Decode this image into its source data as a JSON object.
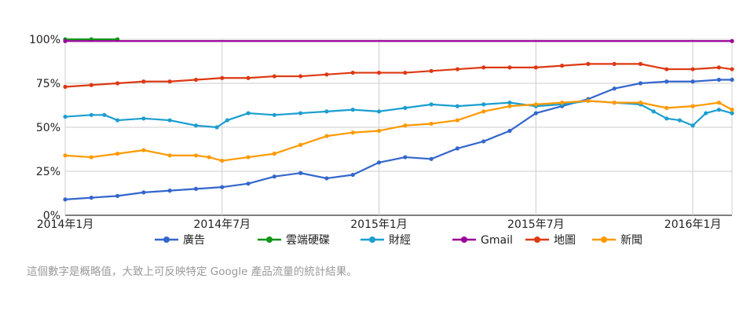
{
  "chart_data": {
    "type": "line",
    "y_tick_labels": [
      "0%",
      "25%",
      "50%",
      "75%",
      "100%"
    ],
    "ylim": [
      0,
      100
    ],
    "x_tick_labels": [
      "2014年1月",
      "2014年7月",
      "2015年1月",
      "2015年7月",
      "2016年1月"
    ],
    "x_tick_positions": [
      0,
      6,
      12,
      18,
      24
    ],
    "xlim": [
      0,
      25.5
    ],
    "grid": true,
    "legend_placement": "bottom",
    "series": [
      {
        "name": "廣告",
        "color": "#3366cc",
        "x": [
          0,
          1,
          2,
          3,
          4,
          5,
          6,
          7,
          8,
          9,
          10,
          11,
          12,
          13,
          14,
          15,
          16,
          17,
          18,
          19,
          20,
          21,
          22,
          23,
          24,
          25,
          25.5
        ],
        "values": [
          9,
          10,
          11,
          13,
          14,
          15,
          16,
          18,
          22,
          24,
          21,
          23,
          30,
          33,
          32,
          38,
          42,
          48,
          58,
          62,
          66,
          72,
          75,
          76,
          76,
          77,
          77
        ]
      },
      {
        "name": "雲端硬碟",
        "color": "#109618",
        "x": [
          0,
          1,
          2
        ],
        "values": [
          100,
          100,
          100
        ]
      },
      {
        "name": "財經",
        "color": "#1a9ed0",
        "x": [
          0,
          1,
          1.5,
          2,
          3,
          4,
          5,
          5.8,
          6.2,
          7,
          8,
          9,
          10,
          11,
          12,
          13,
          14,
          15,
          16,
          17,
          18,
          19,
          20,
          21,
          22,
          22.5,
          23,
          23.5,
          24,
          24.5,
          25,
          25.5
        ],
        "values": [
          56,
          57,
          57,
          54,
          55,
          54,
          51,
          50,
          54,
          58,
          57,
          58,
          59,
          60,
          59,
          61,
          63,
          62,
          63,
          64,
          62,
          63,
          65,
          64,
          63,
          59,
          55,
          54,
          51,
          58,
          60,
          58
        ]
      },
      {
        "name": "Gmail",
        "color": "#990099",
        "x": [
          0,
          25.5
        ],
        "values": [
          99,
          99
        ]
      },
      {
        "name": "地圖",
        "color": "#dc3912",
        "x": [
          0,
          1,
          2,
          3,
          4,
          5,
          6,
          7,
          8,
          9,
          10,
          11,
          12,
          13,
          14,
          15,
          16,
          17,
          18,
          19,
          20,
          21,
          22,
          23,
          24,
          25,
          25.5
        ],
        "values": [
          73,
          74,
          75,
          76,
          76,
          77,
          78,
          78,
          79,
          79,
          80,
          81,
          81,
          81,
          82,
          83,
          84,
          84,
          84,
          85,
          86,
          86,
          86,
          83,
          83,
          84,
          83
        ]
      },
      {
        "name": "新聞",
        "color": "#ff9900",
        "x": [
          0,
          1,
          2,
          3,
          4,
          5,
          5.5,
          6,
          7,
          8,
          9,
          10,
          11,
          12,
          13,
          14,
          15,
          16,
          17,
          18,
          19,
          20,
          21,
          22,
          23,
          24,
          25,
          25.5
        ],
        "values": [
          34,
          33,
          35,
          37,
          34,
          34,
          33,
          31,
          33,
          35,
          40,
          45,
          47,
          48,
          51,
          52,
          54,
          59,
          62,
          63,
          64,
          65,
          64,
          64,
          61,
          62,
          64,
          60
        ]
      }
    ]
  },
  "footnote": "這個數字是概略值，大致上可反映特定 Google 產品流量的統計結果。"
}
